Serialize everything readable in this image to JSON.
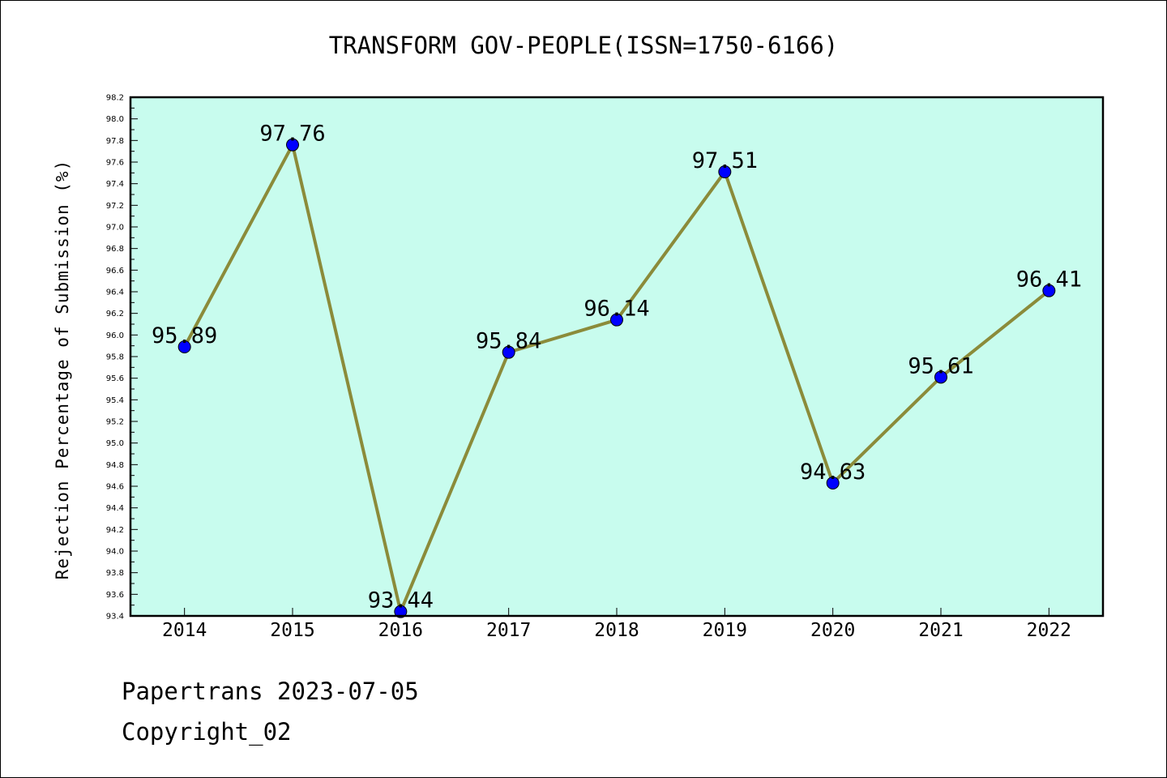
{
  "chart_data": {
    "type": "line",
    "title": "TRANSFORM GOV-PEOPLE(ISSN=1750-6166)",
    "xlabel": "",
    "ylabel": "Rejection Percentage of Submission (%)",
    "categories": [
      "2014",
      "2015",
      "2016",
      "2017",
      "2018",
      "2019",
      "2020",
      "2021",
      "2022"
    ],
    "values": [
      95.89,
      97.76,
      93.44,
      95.84,
      96.14,
      97.51,
      94.63,
      95.61,
      96.41
    ],
    "data_labels": [
      "95.89",
      "97.76",
      "93.44",
      "95.84",
      "96.14",
      "97.51",
      "94.63",
      "95.61",
      "96.41"
    ],
    "ylim": [
      93.4,
      98.2
    ],
    "yticks": [
      "93.4",
      "93.6",
      "93.8",
      "94.0",
      "94.2",
      "94.4",
      "94.6",
      "94.8",
      "95.0",
      "95.2",
      "95.4",
      "95.6",
      "95.8",
      "96.0",
      "96.2",
      "96.4",
      "96.6",
      "96.8",
      "97.0",
      "97.2",
      "97.4",
      "97.6",
      "97.8",
      "98.0",
      "98.2"
    ],
    "grid": false,
    "colors": {
      "plot_background": "#c8fcee",
      "line": "#8b8b3a",
      "marker": "#0000ff"
    }
  },
  "footer": {
    "line1": "Papertrans 2023-07-05",
    "line2": "Copyright_02"
  }
}
